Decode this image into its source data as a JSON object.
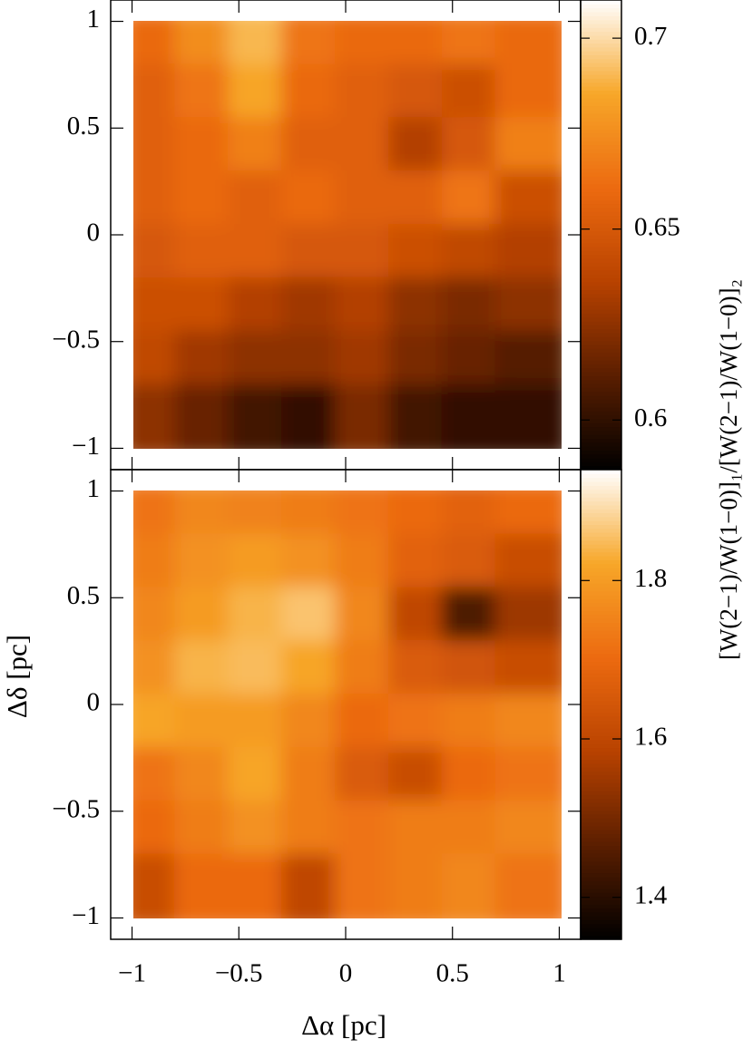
{
  "chart_data": [
    {
      "type": "heatmap",
      "colorbar_label": "[W(2−1)/W(1−0)]₁/[W(2−1)/W(1−0)]₂",
      "x": [
        -0.875,
        -0.625,
        -0.375,
        -0.125,
        0.125,
        0.375,
        0.625,
        0.875
      ],
      "y": [
        0.875,
        0.625,
        0.375,
        0.125,
        -0.125,
        -0.375,
        -0.625,
        -0.875
      ],
      "z": [
        [
          0.66,
          0.675,
          0.69,
          0.665,
          0.66,
          0.66,
          0.665,
          0.66
        ],
        [
          0.655,
          0.665,
          0.685,
          0.66,
          0.655,
          0.65,
          0.645,
          0.66
        ],
        [
          0.655,
          0.66,
          0.67,
          0.655,
          0.655,
          0.635,
          0.65,
          0.67
        ],
        [
          0.655,
          0.66,
          0.655,
          0.66,
          0.655,
          0.655,
          0.665,
          0.645
        ],
        [
          0.65,
          0.655,
          0.655,
          0.65,
          0.65,
          0.645,
          0.64,
          0.635
        ],
        [
          0.645,
          0.645,
          0.635,
          0.63,
          0.635,
          0.625,
          0.62,
          0.625
        ],
        [
          0.64,
          0.63,
          0.625,
          0.625,
          0.63,
          0.62,
          0.615,
          0.61
        ],
        [
          0.625,
          0.615,
          0.605,
          0.6,
          0.62,
          0.605,
          0.6,
          0.6
        ]
      ],
      "xlim": [
        -1.1,
        1.1
      ],
      "ylim": [
        -1.1,
        1.1
      ],
      "xticks": [
        -1,
        -0.5,
        0,
        0.5,
        1
      ],
      "yticks": [
        {
          "value": -1,
          "label": "−1"
        },
        {
          "value": -0.5,
          "label": "−0.5"
        },
        0,
        0.5,
        1
      ],
      "clim": [
        0.587,
        0.71
      ],
      "cticks": [
        0.6,
        0.65,
        0.7
      ],
      "colormap": [
        "#000000",
        "#5a1e00",
        "#b84200",
        "#ec6a10",
        "#f7a628",
        "#ffffff"
      ]
    },
    {
      "type": "heatmap",
      "xlabel": "Δα [pc]",
      "ylabel": "Δδ [pc]",
      "x": [
        -0.875,
        -0.625,
        -0.375,
        -0.125,
        0.125,
        0.375,
        0.625,
        0.875
      ],
      "y": [
        0.875,
        0.625,
        0.375,
        0.125,
        -0.125,
        -0.375,
        -0.625,
        -0.875
      ],
      "z": [
        [
          1.72,
          1.76,
          1.75,
          1.74,
          1.72,
          1.7,
          1.68,
          1.7
        ],
        [
          1.74,
          1.78,
          1.8,
          1.78,
          1.74,
          1.68,
          1.66,
          1.62
        ],
        [
          1.76,
          1.8,
          1.84,
          1.86,
          1.76,
          1.6,
          1.45,
          1.55
        ],
        [
          1.78,
          1.84,
          1.85,
          1.82,
          1.74,
          1.66,
          1.64,
          1.62
        ],
        [
          1.82,
          1.8,
          1.8,
          1.76,
          1.7,
          1.72,
          1.74,
          1.76
        ],
        [
          1.72,
          1.76,
          1.82,
          1.74,
          1.66,
          1.62,
          1.7,
          1.72
        ],
        [
          1.7,
          1.74,
          1.78,
          1.74,
          1.72,
          1.74,
          1.74,
          1.76
        ],
        [
          1.62,
          1.7,
          1.7,
          1.6,
          1.72,
          1.74,
          1.76,
          1.72
        ]
      ],
      "xlim": [
        -1.1,
        1.1
      ],
      "ylim": [
        -1.1,
        1.1
      ],
      "xticks": [
        {
          "value": -1,
          "label": "−1"
        },
        {
          "value": -0.5,
          "label": "−0.5"
        },
        0,
        0.5,
        1
      ],
      "yticks": [
        {
          "value": -1,
          "label": "−1"
        },
        {
          "value": -0.5,
          "label": "−0.5"
        },
        0,
        0.5,
        1
      ],
      "clim": [
        1.347,
        1.94
      ],
      "cticks": [
        1.4,
        1.6,
        1.8
      ],
      "colormap": [
        "#000000",
        "#5a1e00",
        "#b84200",
        "#ec6a10",
        "#f7a628",
        "#ffffff"
      ]
    }
  ]
}
